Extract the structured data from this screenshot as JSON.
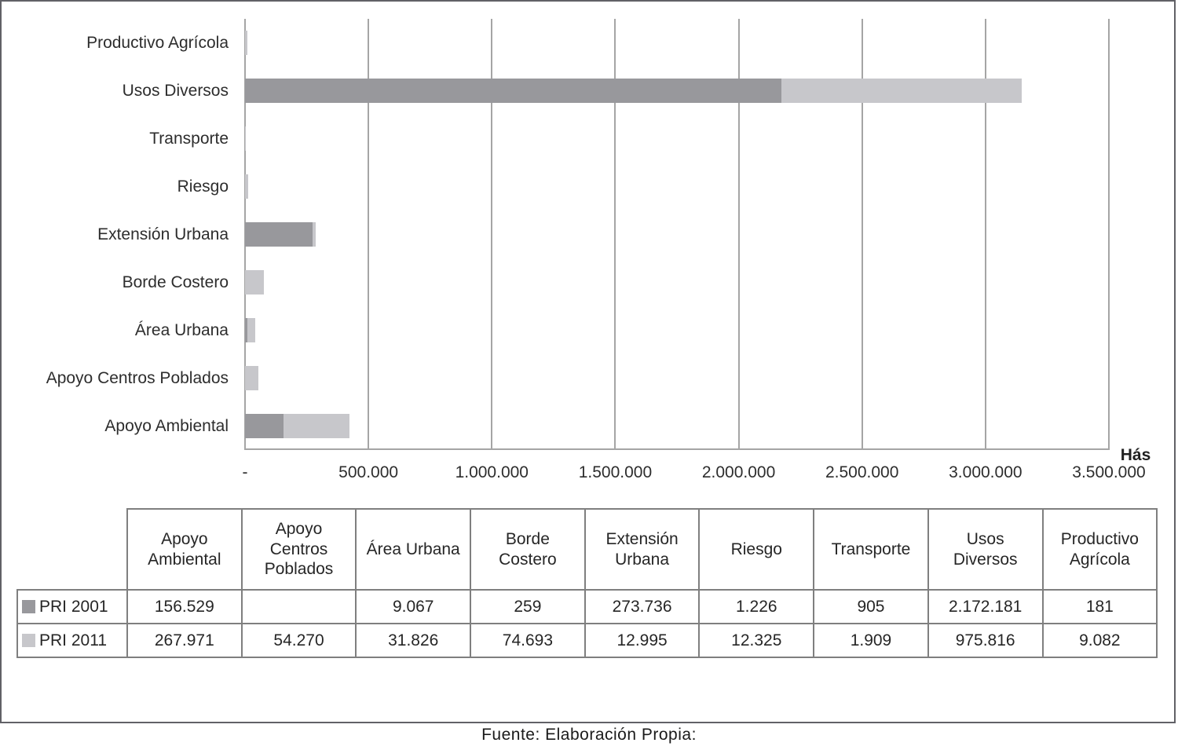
{
  "chart_data": {
    "type": "bar",
    "orientation": "horizontal",
    "stacked": true,
    "grid": "vertical",
    "categories_top_to_bottom": [
      "Productivo Agrícola",
      "Usos Diversos",
      "Transporte",
      "Riesgo",
      "Extensión Urbana",
      "Borde Costero",
      "Área Urbana",
      "Apoyo Centros Poblados",
      "Apoyo Ambiental"
    ],
    "series": [
      {
        "name": "PRI 2001",
        "color": "#98989c",
        "values": [
          181,
          2172181,
          905,
          1226,
          273736,
          259,
          9067,
          null,
          156529
        ]
      },
      {
        "name": "PRI 2011",
        "color": "#c7c7cb",
        "values": [
          9082,
          975816,
          1909,
          12325,
          12995,
          74693,
          31826,
          54270,
          267971
        ]
      }
    ],
    "xlabel": "Hás",
    "xlim": [
      0,
      3500000
    ],
    "xtick_step": 500000,
    "xtick_labels": [
      "-",
      "500.000",
      "1.000.000",
      "1.500.000",
      "2.000.000",
      "2.500.000",
      "3.000.000",
      "3.500.000"
    ],
    "legend_position": "table-left"
  },
  "table": {
    "columns": [
      "Apoyo Ambiental",
      "Apoyo Centros Poblados",
      "Área Urbana",
      "Borde Costero",
      "Extensión Urbana",
      "Riesgo",
      "Transporte",
      "Usos Diversos",
      "Productivo Agrícola"
    ],
    "rows": [
      {
        "label": "PRI 2001",
        "values": [
          "156.529",
          "",
          "9.067",
          "259",
          "273.736",
          "1.226",
          "905",
          "2.172.181",
          "181"
        ]
      },
      {
        "label": "PRI 2011",
        "values": [
          "267.971",
          "54.270",
          "31.826",
          "74.693",
          "12.995",
          "12.325",
          "1.909",
          "975.816",
          "9.082"
        ]
      }
    ]
  },
  "footer": {
    "text": "Fuente: Elaboración Propia:"
  }
}
